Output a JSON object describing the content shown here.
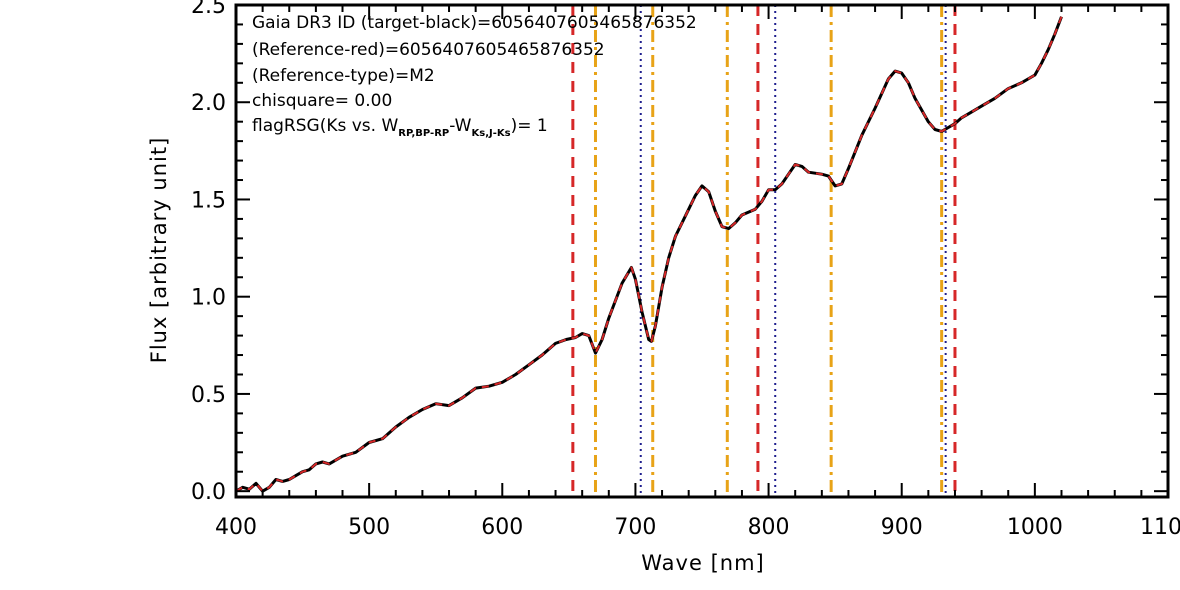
{
  "chart_data": {
    "type": "line",
    "xlabel": "Wave [nm]",
    "ylabel": "Flux [arbitrary unit]",
    "xlim": [
      400,
      1100
    ],
    "ylim": [
      -0.03,
      2.5
    ],
    "x_ticks": [
      {
        "value": 400,
        "label": "400"
      },
      {
        "value": 500,
        "label": "500"
      },
      {
        "value": 600,
        "label": "600"
      },
      {
        "value": 700,
        "label": "700"
      },
      {
        "value": 800,
        "label": "800"
      },
      {
        "value": 900,
        "label": "900"
      },
      {
        "value": 1000,
        "label": "1000"
      },
      {
        "value": 1100,
        "label": "1100"
      }
    ],
    "y_ticks": [
      {
        "value": 0.0,
        "label": "0.0"
      },
      {
        "value": 0.5,
        "label": "0.5"
      },
      {
        "value": 1.0,
        "label": "1.0"
      },
      {
        "value": 1.5,
        "label": "1.5"
      },
      {
        "value": 2.0,
        "label": "2.0"
      },
      {
        "value": 2.5,
        "label": "2.5"
      }
    ],
    "grid": false,
    "annotations": {
      "line1": "Gaia DR3 ID (target-black)=6056407605465876352",
      "line2": "(Reference-red)=6056407605465876352",
      "line3": "(Reference-type)=M2",
      "line4": "chisquare= 0.00",
      "line5_prefix": "flagRSG(Ks vs. W",
      "line5_sub1": "RP,BP-RP",
      "line5_mid": "-W",
      "line5_sub2": "Ks,J-Ks",
      "line5_suffix": ")= 1"
    },
    "series": [
      {
        "color": "#000000",
        "style": "solid",
        "x": [
          400,
          405,
          410,
          415,
          420,
          425,
          430,
          435,
          440,
          445,
          450,
          455,
          460,
          465,
          470,
          480,
          490,
          500,
          510,
          520,
          530,
          540,
          550,
          560,
          570,
          580,
          590,
          600,
          610,
          620,
          630,
          640,
          648,
          655,
          660,
          665,
          670,
          675,
          680,
          690,
          697,
          700,
          705,
          710,
          712,
          715,
          720,
          725,
          730,
          740,
          745,
          750,
          755,
          760,
          765,
          770,
          775,
          780,
          790,
          795,
          800,
          805,
          810,
          815,
          820,
          825,
          830,
          840,
          845,
          850,
          855,
          860,
          870,
          880,
          890,
          895,
          900,
          905,
          910,
          920,
          925,
          930,
          935,
          940,
          945,
          950,
          960,
          970,
          980,
          990,
          1000,
          1005,
          1010,
          1015,
          1020
        ],
        "values": [
          0.0,
          0.02,
          0.01,
          0.04,
          0.0,
          0.02,
          0.06,
          0.05,
          0.06,
          0.08,
          0.1,
          0.11,
          0.14,
          0.15,
          0.14,
          0.18,
          0.2,
          0.25,
          0.27,
          0.33,
          0.38,
          0.42,
          0.45,
          0.44,
          0.48,
          0.53,
          0.54,
          0.56,
          0.6,
          0.65,
          0.7,
          0.76,
          0.78,
          0.79,
          0.81,
          0.8,
          0.71,
          0.78,
          0.89,
          1.07,
          1.15,
          1.09,
          0.92,
          0.78,
          0.77,
          0.85,
          1.05,
          1.2,
          1.31,
          1.45,
          1.52,
          1.57,
          1.54,
          1.44,
          1.36,
          1.35,
          1.38,
          1.42,
          1.45,
          1.49,
          1.55,
          1.55,
          1.58,
          1.63,
          1.68,
          1.67,
          1.64,
          1.63,
          1.62,
          1.57,
          1.58,
          1.66,
          1.83,
          1.97,
          2.12,
          2.16,
          2.15,
          2.1,
          2.02,
          1.9,
          1.86,
          1.85,
          1.87,
          1.89,
          1.92,
          1.94,
          1.98,
          2.02,
          2.07,
          2.1,
          2.14,
          2.2,
          2.27,
          2.35,
          2.44
        ]
      },
      {
        "color": "#d62728",
        "style": "dashed",
        "x": [
          400,
          405,
          410,
          415,
          420,
          425,
          430,
          435,
          440,
          445,
          450,
          455,
          460,
          465,
          470,
          480,
          490,
          500,
          510,
          520,
          530,
          540,
          550,
          560,
          570,
          580,
          590,
          600,
          610,
          620,
          630,
          640,
          648,
          655,
          660,
          665,
          670,
          675,
          680,
          690,
          697,
          700,
          705,
          710,
          712,
          715,
          720,
          725,
          730,
          740,
          745,
          750,
          755,
          760,
          765,
          770,
          775,
          780,
          790,
          795,
          800,
          805,
          810,
          815,
          820,
          825,
          830,
          840,
          845,
          850,
          855,
          860,
          870,
          880,
          890,
          895,
          900,
          905,
          910,
          920,
          925,
          930,
          935,
          940,
          945,
          950,
          960,
          970,
          980,
          990,
          1000,
          1005,
          1010,
          1015,
          1020
        ],
        "values": [
          0.0,
          0.02,
          0.01,
          0.04,
          0.0,
          0.02,
          0.06,
          0.05,
          0.06,
          0.08,
          0.1,
          0.11,
          0.14,
          0.15,
          0.14,
          0.18,
          0.2,
          0.25,
          0.27,
          0.33,
          0.38,
          0.42,
          0.45,
          0.44,
          0.48,
          0.53,
          0.54,
          0.56,
          0.6,
          0.65,
          0.7,
          0.76,
          0.78,
          0.79,
          0.81,
          0.8,
          0.71,
          0.78,
          0.89,
          1.07,
          1.15,
          1.09,
          0.92,
          0.78,
          0.77,
          0.85,
          1.05,
          1.2,
          1.31,
          1.45,
          1.52,
          1.57,
          1.54,
          1.44,
          1.36,
          1.35,
          1.38,
          1.42,
          1.45,
          1.49,
          1.55,
          1.55,
          1.58,
          1.63,
          1.68,
          1.67,
          1.64,
          1.63,
          1.62,
          1.57,
          1.58,
          1.66,
          1.83,
          1.97,
          2.12,
          2.16,
          2.15,
          2.1,
          2.02,
          1.9,
          1.86,
          1.85,
          1.87,
          1.89,
          1.92,
          1.94,
          1.98,
          2.02,
          2.07,
          2.1,
          2.14,
          2.2,
          2.27,
          2.35,
          2.44
        ]
      }
    ],
    "vlines": [
      {
        "x": 653,
        "color": "#d62728",
        "style": "dashed"
      },
      {
        "x": 670,
        "color": "#e8a317",
        "style": "dashdot"
      },
      {
        "x": 704,
        "color": "#1f1f8f",
        "style": "dotted"
      },
      {
        "x": 713,
        "color": "#e8a317",
        "style": "dashdot"
      },
      {
        "x": 769,
        "color": "#e8a317",
        "style": "dashdot"
      },
      {
        "x": 792,
        "color": "#d62728",
        "style": "dashed"
      },
      {
        "x": 805,
        "color": "#1f1f8f",
        "style": "dotted"
      },
      {
        "x": 847,
        "color": "#e8a317",
        "style": "dashdot"
      },
      {
        "x": 930,
        "color": "#e8a317",
        "style": "dashdot"
      },
      {
        "x": 933,
        "color": "#1f1f8f",
        "style": "dotted"
      },
      {
        "x": 940,
        "color": "#d62728",
        "style": "dashed"
      }
    ]
  }
}
